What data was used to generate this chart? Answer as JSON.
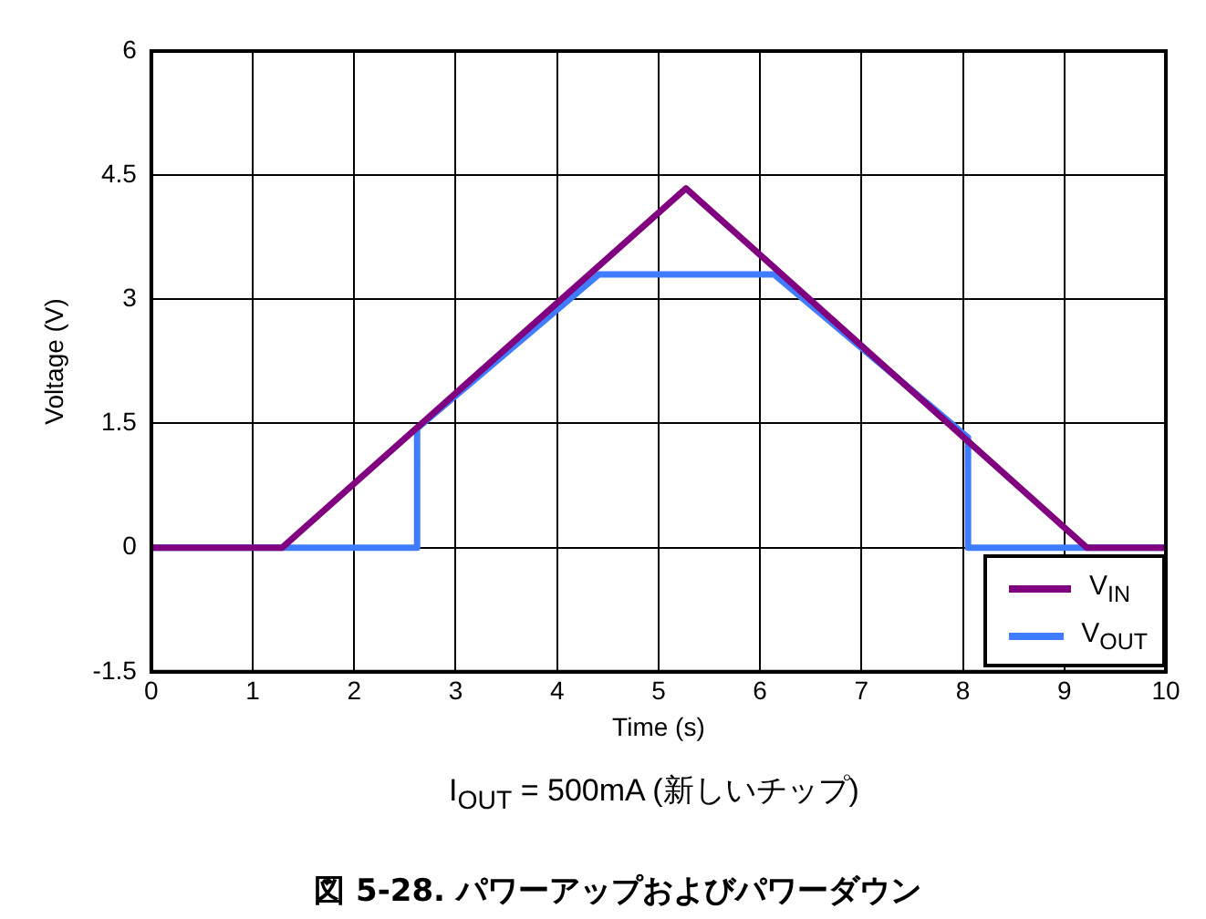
{
  "chart_data": {
    "type": "line",
    "title": "図 5-28. パワーアップおよびパワーダウン",
    "xlabel": "Time (s)",
    "ylabel": "Voltage (V)",
    "annotations": [
      "I$_{OUT}$ = 500mA (新しいチップ)"
    ],
    "series": [
      {
        "name": "V$_{IN}$",
        "color": "#800080",
        "x": [
          0,
          1.29,
          5.27,
          9.22,
          10
        ],
        "values": [
          0,
          0,
          4.34,
          0,
          0
        ]
      },
      {
        "name": "V$_{OUT}$",
        "color": "#3f7cff",
        "x": [
          0,
          2.62,
          2.62,
          4.41,
          6.14,
          8.05,
          8.05,
          10
        ],
        "values": [
          0,
          0,
          1.44,
          3.3,
          3.3,
          1.33,
          0,
          0
        ]
      }
    ],
    "xlim": [
      0,
      10
    ],
    "xticks": [
      0,
      1,
      2,
      3,
      4,
      5,
      6,
      7,
      8,
      9,
      10
    ],
    "ylim": [
      -1.5,
      6
    ],
    "yticks": [
      -1.5,
      0,
      1.5,
      3,
      4.5,
      6
    ],
    "grid": true,
    "legend": "bottom right",
    "marker": "none",
    "line_style": "solid"
  }
}
